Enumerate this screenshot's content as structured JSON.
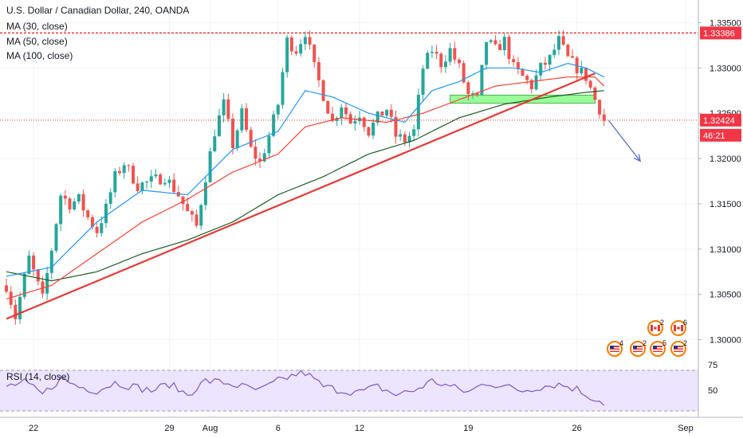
{
  "header": {
    "title": "U.S. Dollar / Canadian Dollar, 240, OANDA",
    "indicators": [
      "MA (30, close)",
      "MA (50, close)",
      "MA (100, close)"
    ]
  },
  "rsi": {
    "label": "RSI (14, close)",
    "upper": 75,
    "mid": 50
  },
  "price_badges": {
    "resistance": "1.33386",
    "last": "1.32424",
    "countdown": "46:21"
  },
  "events": {
    "top_row": [
      "2",
      "6"
    ],
    "bottom_row": [
      "4",
      "2",
      "5",
      "2"
    ]
  },
  "colors": {
    "up": "#26a69a",
    "down": "#ef5350",
    "ma30": "#2196f3",
    "ma50": "#f44336",
    "ma100": "#1b5e20",
    "trendline": "#e53935",
    "zone": "#76ff76",
    "rsi": "#7e57c2"
  },
  "chart_data": {
    "type": "candlestick",
    "title": "U.S. Dollar / Canadian Dollar, 240, OANDA",
    "ylim": [
      1.2975,
      1.3375
    ],
    "y_ticks": [
      "1.33500",
      "1.33000",
      "1.32500",
      "1.32000",
      "1.31500",
      "1.31000",
      "1.30500",
      "1.30000"
    ],
    "y_tick_values": [
      1.335,
      1.33,
      1.325,
      1.32,
      1.315,
      1.31,
      1.305,
      1.3
    ],
    "x_ticks": [
      "22",
      "29",
      "Aug",
      "6",
      "12",
      "19",
      "26",
      "Sep"
    ],
    "resistance_level": 1.33386,
    "last_price": 1.32424,
    "trendline": {
      "from": [
        0,
        1.3023
      ],
      "to": [
        130,
        1.3294
      ]
    },
    "support_zone": [
      1.3261,
      1.327
    ],
    "forecast_arrow": {
      "from": [
        133,
        1.3242
      ],
      "to": [
        140,
        1.3197
      ]
    },
    "control_points": [
      [
        0,
        1.306
      ],
      [
        2,
        1.3025
      ],
      [
        5,
        1.309
      ],
      [
        8,
        1.3045
      ],
      [
        10,
        1.31
      ],
      [
        12,
        1.316
      ],
      [
        14,
        1.315
      ],
      [
        16,
        1.3155
      ],
      [
        18,
        1.3135
      ],
      [
        20,
        1.312
      ],
      [
        22,
        1.3145
      ],
      [
        24,
        1.318
      ],
      [
        26,
        1.3195
      ],
      [
        29,
        1.317
      ],
      [
        32,
        1.3175
      ],
      [
        35,
        1.318
      ],
      [
        38,
        1.316
      ],
      [
        40,
        1.314
      ],
      [
        42,
        1.3125
      ],
      [
        44,
        1.318
      ],
      [
        46,
        1.323
      ],
      [
        48,
        1.326
      ],
      [
        50,
        1.3215
      ],
      [
        52,
        1.325
      ],
      [
        54,
        1.321
      ],
      [
        56,
        1.3195
      ],
      [
        58,
        1.3225
      ],
      [
        60,
        1.326
      ],
      [
        62,
        1.333
      ],
      [
        64,
        1.332
      ],
      [
        66,
        1.334
      ],
      [
        68,
        1.33
      ],
      [
        70,
        1.327
      ],
      [
        72,
        1.324
      ],
      [
        74,
        1.326
      ],
      [
        76,
        1.324
      ],
      [
        78,
        1.325
      ],
      [
        80,
        1.323
      ],
      [
        82,
        1.3245
      ],
      [
        84,
        1.3255
      ],
      [
        86,
        1.3225
      ],
      [
        88,
        1.322
      ],
      [
        90,
        1.323
      ],
      [
        92,
        1.33
      ],
      [
        94,
        1.332
      ],
      [
        96,
        1.3305
      ],
      [
        98,
        1.332
      ],
      [
        100,
        1.33
      ],
      [
        102,
        1.327
      ],
      [
        104,
        1.3265
      ],
      [
        106,
        1.333
      ],
      [
        108,
        1.332
      ],
      [
        110,
        1.333
      ],
      [
        112,
        1.33
      ],
      [
        114,
        1.329
      ],
      [
        116,
        1.328
      ],
      [
        118,
        1.33
      ],
      [
        120,
        1.331
      ],
      [
        122,
        1.333
      ],
      [
        124,
        1.331
      ],
      [
        126,
        1.33
      ],
      [
        128,
        1.329
      ],
      [
        130,
        1.3265
      ],
      [
        131,
        1.3255
      ],
      [
        132,
        1.3242
      ]
    ],
    "ma30": [
      [
        0,
        1.307
      ],
      [
        10,
        1.308
      ],
      [
        20,
        1.313
      ],
      [
        30,
        1.3165
      ],
      [
        40,
        1.316
      ],
      [
        50,
        1.321
      ],
      [
        60,
        1.323
      ],
      [
        66,
        1.3275
      ],
      [
        72,
        1.3268
      ],
      [
        80,
        1.325
      ],
      [
        88,
        1.324
      ],
      [
        94,
        1.3275
      ],
      [
        100,
        1.3285
      ],
      [
        106,
        1.33
      ],
      [
        112,
        1.33
      ],
      [
        118,
        1.3295
      ],
      [
        124,
        1.3305
      ],
      [
        128,
        1.33
      ],
      [
        132,
        1.329
      ]
    ],
    "ma50": [
      [
        0,
        1.3045
      ],
      [
        10,
        1.306
      ],
      [
        20,
        1.3095
      ],
      [
        30,
        1.313
      ],
      [
        40,
        1.3155
      ],
      [
        50,
        1.3185
      ],
      [
        60,
        1.3205
      ],
      [
        66,
        1.3235
      ],
      [
        74,
        1.3245
      ],
      [
        84,
        1.324
      ],
      [
        92,
        1.325
      ],
      [
        100,
        1.3265
      ],
      [
        108,
        1.328
      ],
      [
        116,
        1.3285
      ],
      [
        124,
        1.329
      ],
      [
        130,
        1.329
      ],
      [
        132,
        1.328
      ]
    ],
    "ma100": [
      [
        0,
        1.3075
      ],
      [
        10,
        1.3065
      ],
      [
        20,
        1.3075
      ],
      [
        30,
        1.3095
      ],
      [
        40,
        1.311
      ],
      [
        50,
        1.313
      ],
      [
        60,
        1.316
      ],
      [
        70,
        1.318
      ],
      [
        80,
        1.3205
      ],
      [
        90,
        1.322
      ],
      [
        100,
        1.3245
      ],
      [
        110,
        1.326
      ],
      [
        120,
        1.3268
      ],
      [
        128,
        1.3273
      ],
      [
        132,
        1.3275
      ]
    ],
    "rsi_range": [
      25,
      75
    ],
    "rsi_points": [
      [
        0,
        55
      ],
      [
        4,
        60
      ],
      [
        8,
        45
      ],
      [
        12,
        65
      ],
      [
        16,
        55
      ],
      [
        20,
        50
      ],
      [
        24,
        60
      ],
      [
        28,
        55
      ],
      [
        32,
        50
      ],
      [
        36,
        58
      ],
      [
        40,
        45
      ],
      [
        44,
        62
      ],
      [
        48,
        60
      ],
      [
        52,
        55
      ],
      [
        56,
        50
      ],
      [
        60,
        62
      ],
      [
        64,
        70
      ],
      [
        66,
        72
      ],
      [
        70,
        55
      ],
      [
        74,
        50
      ],
      [
        78,
        48
      ],
      [
        82,
        55
      ],
      [
        86,
        45
      ],
      [
        90,
        50
      ],
      [
        94,
        62
      ],
      [
        98,
        55
      ],
      [
        102,
        48
      ],
      [
        106,
        60
      ],
      [
        110,
        55
      ],
      [
        114,
        50
      ],
      [
        118,
        55
      ],
      [
        122,
        58
      ],
      [
        126,
        52
      ],
      [
        128,
        45
      ],
      [
        130,
        40
      ],
      [
        132,
        35
      ]
    ]
  }
}
